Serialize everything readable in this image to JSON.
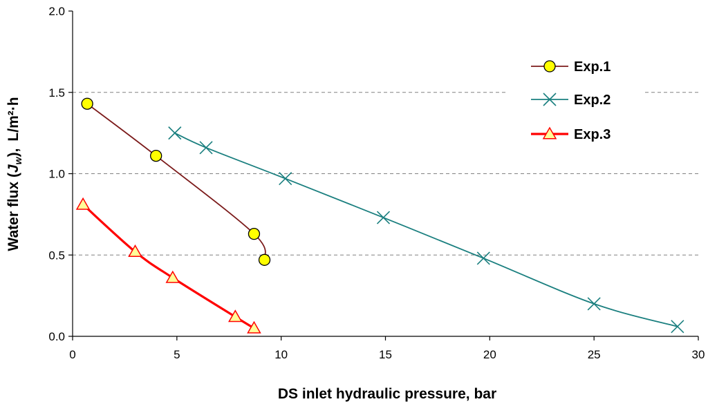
{
  "chart_data": {
    "type": "line",
    "title": "",
    "xlabel": "DS inlet hydraulic pressure, bar",
    "ylabel": {
      "main": "Water flux (",
      "sym": "J",
      "sub": "w",
      "close": "),",
      "unit": "L/m²·h"
    },
    "xlim": [
      0,
      30
    ],
    "ylim": [
      0,
      2.0
    ],
    "xticks": [
      0,
      5,
      10,
      15,
      20,
      25,
      30
    ],
    "yticks": [
      0.0,
      0.5,
      1.0,
      1.5,
      2.0
    ],
    "xtick_labels": [
      "0",
      "5",
      "10",
      "15",
      "20",
      "25",
      "30"
    ],
    "ytick_labels": [
      "0.0",
      "0.5",
      "1.0",
      "1.5",
      "2.0"
    ],
    "gridlines": [
      0.5,
      1.0,
      1.5
    ],
    "legend_position": "top-right",
    "series": [
      {
        "name": "Exp.1",
        "color": "#7b1a1a",
        "marker": "circle",
        "marker_fill": "#ffff00",
        "x": [
          0.7,
          4.0,
          8.7,
          9.2
        ],
        "y": [
          1.43,
          1.11,
          0.63,
          0.47
        ]
      },
      {
        "name": "Exp.2",
        "color": "#1a7f7f",
        "marker": "x",
        "marker_fill": "none",
        "x": [
          4.9,
          6.4,
          10.2,
          14.9,
          19.7,
          25.0,
          29.0
        ],
        "y": [
          1.25,
          1.16,
          0.97,
          0.73,
          0.48,
          0.2,
          0.06
        ]
      },
      {
        "name": "Exp.3",
        "color": "#ff0000",
        "marker": "triangle",
        "marker_fill": "#ffff99",
        "x": [
          0.5,
          3.0,
          4.8,
          7.8,
          8.7
        ],
        "y": [
          0.81,
          0.52,
          0.36,
          0.12,
          0.05
        ]
      }
    ]
  }
}
